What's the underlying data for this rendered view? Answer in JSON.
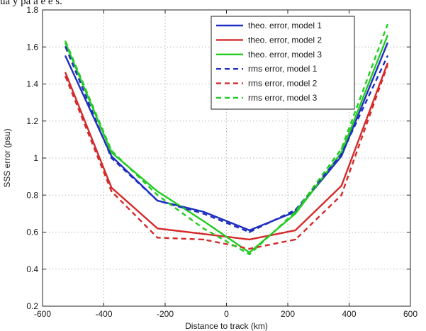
{
  "caption_fragment": "ua  y pa a  e e s.",
  "chart_data": {
    "type": "line",
    "xlabel": "Distance to track (km)",
    "ylabel": "SSS error (psu)",
    "xlim": [
      -600,
      600
    ],
    "ylim": [
      0.2,
      1.8
    ],
    "xticks": [
      -600,
      -400,
      -200,
      0,
      200,
      400,
      600
    ],
    "yticks": [
      0.2,
      0.4,
      0.6,
      0.8,
      1,
      1.2,
      1.4,
      1.6,
      1.8
    ],
    "xtick_labels": [
      "-600",
      "-400",
      "-200",
      "0",
      "200",
      "400",
      "600"
    ],
    "ytick_labels": [
      "0.2",
      "0.4",
      "0.6",
      "0.8",
      "1",
      "1.2",
      "1.4",
      "1.6",
      "1.8"
    ],
    "grid": true,
    "legend_position": "top-right",
    "series": [
      {
        "name": "theo. error, model 1",
        "color": "#1f2fbf",
        "style": "solid",
        "x": [
          -525,
          -375,
          -225,
          -75,
          75,
          225,
          375,
          525
        ],
        "y": [
          1.55,
          1.01,
          0.77,
          0.71,
          0.61,
          0.71,
          1.01,
          1.62
        ]
      },
      {
        "name": "theo. error, model 2",
        "color": "#d42a2a",
        "style": "solid",
        "x": [
          -525,
          -375,
          -225,
          -75,
          75,
          225,
          375,
          525
        ],
        "y": [
          1.46,
          0.84,
          0.62,
          0.59,
          0.56,
          0.61,
          0.85,
          1.51
        ]
      },
      {
        "name": "theo. error, model 3",
        "color": "#22cc22",
        "style": "solid",
        "x": [
          -525,
          -375,
          -225,
          -75,
          75,
          225,
          375,
          525
        ],
        "y": [
          1.62,
          1.03,
          0.82,
          0.66,
          0.49,
          0.7,
          1.03,
          1.66
        ]
      },
      {
        "name": "rms error, model 1",
        "color": "#1f2fbf",
        "style": "dashed",
        "x": [
          -525,
          -375,
          -225,
          -75,
          75,
          225,
          375,
          525
        ],
        "y": [
          1.6,
          1.0,
          0.77,
          0.7,
          0.6,
          0.72,
          1.02,
          1.55
        ]
      },
      {
        "name": "rms error, model 2",
        "color": "#d42a2a",
        "style": "dashed",
        "x": [
          -525,
          -375,
          -225,
          -75,
          75,
          225,
          375,
          525
        ],
        "y": [
          1.44,
          0.82,
          0.57,
          0.56,
          0.51,
          0.56,
          0.8,
          1.5
        ]
      },
      {
        "name": "rms error, model 3",
        "color": "#22cc22",
        "style": "dashed",
        "x": [
          -525,
          -375,
          -225,
          -75,
          75,
          225,
          375,
          525
        ],
        "y": [
          1.63,
          1.04,
          0.8,
          0.62,
          0.48,
          0.71,
          1.05,
          1.72
        ]
      }
    ]
  }
}
